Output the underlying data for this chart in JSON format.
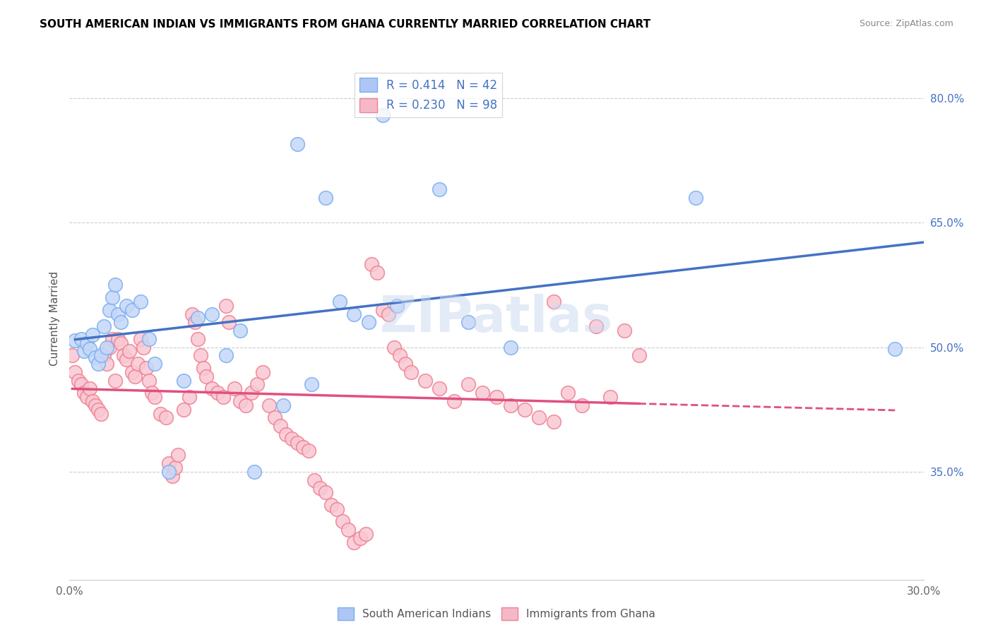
{
  "title": "SOUTH AMERICAN INDIAN VS IMMIGRANTS FROM GHANA CURRENTLY MARRIED CORRELATION CHART",
  "source": "Source: ZipAtlas.com",
  "xlabel_bottom": "",
  "ylabel": "Currently Married",
  "xmin": 0.0,
  "xmax": 0.3,
  "ymin": 0.22,
  "ymax": 0.85,
  "right_yticks": [
    0.35,
    0.5,
    0.65,
    0.8
  ],
  "right_ytick_labels": [
    "35.0%",
    "50.0%",
    "65.0%",
    "80.0%"
  ],
  "bottom_xticks": [
    0.0,
    0.05,
    0.1,
    0.15,
    0.2,
    0.25,
    0.3
  ],
  "bottom_xtick_labels": [
    "0.0%",
    "",
    "",
    "",
    "",
    "",
    "30.0%"
  ],
  "legend_entries": [
    {
      "label": "R = 0.414   N = 42",
      "color": "#aec6f5"
    },
    {
      "label": "R = 0.230   N = 98",
      "color": "#f5b8c8"
    }
  ],
  "series1_color": "#7baff0",
  "series1_fill": "#c5d8f8",
  "series2_color": "#f08090",
  "series2_fill": "#f8c8d4",
  "trendline1_color": "#4472c4",
  "trendline2_color": "#e05080",
  "watermark": "ZIPatlas",
  "blue_points": [
    [
      0.002,
      0.508
    ],
    [
      0.004,
      0.51
    ],
    [
      0.005,
      0.495
    ],
    [
      0.006,
      0.505
    ],
    [
      0.007,
      0.498
    ],
    [
      0.008,
      0.515
    ],
    [
      0.009,
      0.488
    ],
    [
      0.01,
      0.48
    ],
    [
      0.011,
      0.49
    ],
    [
      0.012,
      0.525
    ],
    [
      0.013,
      0.5
    ],
    [
      0.014,
      0.545
    ],
    [
      0.015,
      0.56
    ],
    [
      0.016,
      0.575
    ],
    [
      0.017,
      0.54
    ],
    [
      0.018,
      0.53
    ],
    [
      0.02,
      0.55
    ],
    [
      0.022,
      0.545
    ],
    [
      0.025,
      0.555
    ],
    [
      0.028,
      0.51
    ],
    [
      0.03,
      0.48
    ],
    [
      0.035,
      0.35
    ],
    [
      0.04,
      0.46
    ],
    [
      0.045,
      0.535
    ],
    [
      0.05,
      0.54
    ],
    [
      0.055,
      0.49
    ],
    [
      0.06,
      0.52
    ],
    [
      0.065,
      0.35
    ],
    [
      0.075,
      0.43
    ],
    [
      0.08,
      0.745
    ],
    [
      0.085,
      0.455
    ],
    [
      0.09,
      0.68
    ],
    [
      0.095,
      0.555
    ],
    [
      0.1,
      0.54
    ],
    [
      0.105,
      0.53
    ],
    [
      0.11,
      0.78
    ],
    [
      0.115,
      0.55
    ],
    [
      0.13,
      0.69
    ],
    [
      0.14,
      0.53
    ],
    [
      0.155,
      0.5
    ],
    [
      0.22,
      0.68
    ],
    [
      0.29,
      0.498
    ]
  ],
  "pink_points": [
    [
      0.001,
      0.49
    ],
    [
      0.002,
      0.47
    ],
    [
      0.003,
      0.46
    ],
    [
      0.004,
      0.455
    ],
    [
      0.005,
      0.445
    ],
    [
      0.006,
      0.44
    ],
    [
      0.007,
      0.45
    ],
    [
      0.008,
      0.435
    ],
    [
      0.009,
      0.43
    ],
    [
      0.01,
      0.425
    ],
    [
      0.011,
      0.42
    ],
    [
      0.012,
      0.49
    ],
    [
      0.013,
      0.48
    ],
    [
      0.014,
      0.5
    ],
    [
      0.015,
      0.51
    ],
    [
      0.016,
      0.46
    ],
    [
      0.017,
      0.51
    ],
    [
      0.018,
      0.505
    ],
    [
      0.019,
      0.49
    ],
    [
      0.02,
      0.485
    ],
    [
      0.021,
      0.495
    ],
    [
      0.022,
      0.47
    ],
    [
      0.023,
      0.465
    ],
    [
      0.024,
      0.48
    ],
    [
      0.025,
      0.51
    ],
    [
      0.026,
      0.5
    ],
    [
      0.027,
      0.475
    ],
    [
      0.028,
      0.46
    ],
    [
      0.029,
      0.445
    ],
    [
      0.03,
      0.44
    ],
    [
      0.032,
      0.42
    ],
    [
      0.034,
      0.415
    ],
    [
      0.035,
      0.36
    ],
    [
      0.036,
      0.345
    ],
    [
      0.037,
      0.355
    ],
    [
      0.038,
      0.37
    ],
    [
      0.04,
      0.425
    ],
    [
      0.042,
      0.44
    ],
    [
      0.043,
      0.54
    ],
    [
      0.044,
      0.53
    ],
    [
      0.045,
      0.51
    ],
    [
      0.046,
      0.49
    ],
    [
      0.047,
      0.475
    ],
    [
      0.048,
      0.465
    ],
    [
      0.05,
      0.45
    ],
    [
      0.052,
      0.445
    ],
    [
      0.054,
      0.44
    ],
    [
      0.055,
      0.55
    ],
    [
      0.056,
      0.53
    ],
    [
      0.058,
      0.45
    ],
    [
      0.06,
      0.435
    ],
    [
      0.062,
      0.43
    ],
    [
      0.064,
      0.445
    ],
    [
      0.066,
      0.455
    ],
    [
      0.068,
      0.47
    ],
    [
      0.07,
      0.43
    ],
    [
      0.072,
      0.415
    ],
    [
      0.074,
      0.405
    ],
    [
      0.076,
      0.395
    ],
    [
      0.078,
      0.39
    ],
    [
      0.08,
      0.385
    ],
    [
      0.082,
      0.38
    ],
    [
      0.084,
      0.375
    ],
    [
      0.086,
      0.34
    ],
    [
      0.088,
      0.33
    ],
    [
      0.09,
      0.325
    ],
    [
      0.092,
      0.31
    ],
    [
      0.094,
      0.305
    ],
    [
      0.096,
      0.29
    ],
    [
      0.098,
      0.28
    ],
    [
      0.1,
      0.265
    ],
    [
      0.102,
      0.27
    ],
    [
      0.104,
      0.275
    ],
    [
      0.106,
      0.6
    ],
    [
      0.108,
      0.59
    ],
    [
      0.11,
      0.545
    ],
    [
      0.112,
      0.54
    ],
    [
      0.114,
      0.5
    ],
    [
      0.116,
      0.49
    ],
    [
      0.118,
      0.48
    ],
    [
      0.12,
      0.47
    ],
    [
      0.125,
      0.46
    ],
    [
      0.13,
      0.45
    ],
    [
      0.135,
      0.435
    ],
    [
      0.14,
      0.455
    ],
    [
      0.145,
      0.445
    ],
    [
      0.15,
      0.44
    ],
    [
      0.155,
      0.43
    ],
    [
      0.16,
      0.425
    ],
    [
      0.165,
      0.415
    ],
    [
      0.17,
      0.41
    ],
    [
      0.175,
      0.445
    ],
    [
      0.18,
      0.43
    ],
    [
      0.185,
      0.525
    ],
    [
      0.19,
      0.44
    ],
    [
      0.195,
      0.52
    ],
    [
      0.2,
      0.49
    ],
    [
      0.17,
      0.555
    ]
  ]
}
